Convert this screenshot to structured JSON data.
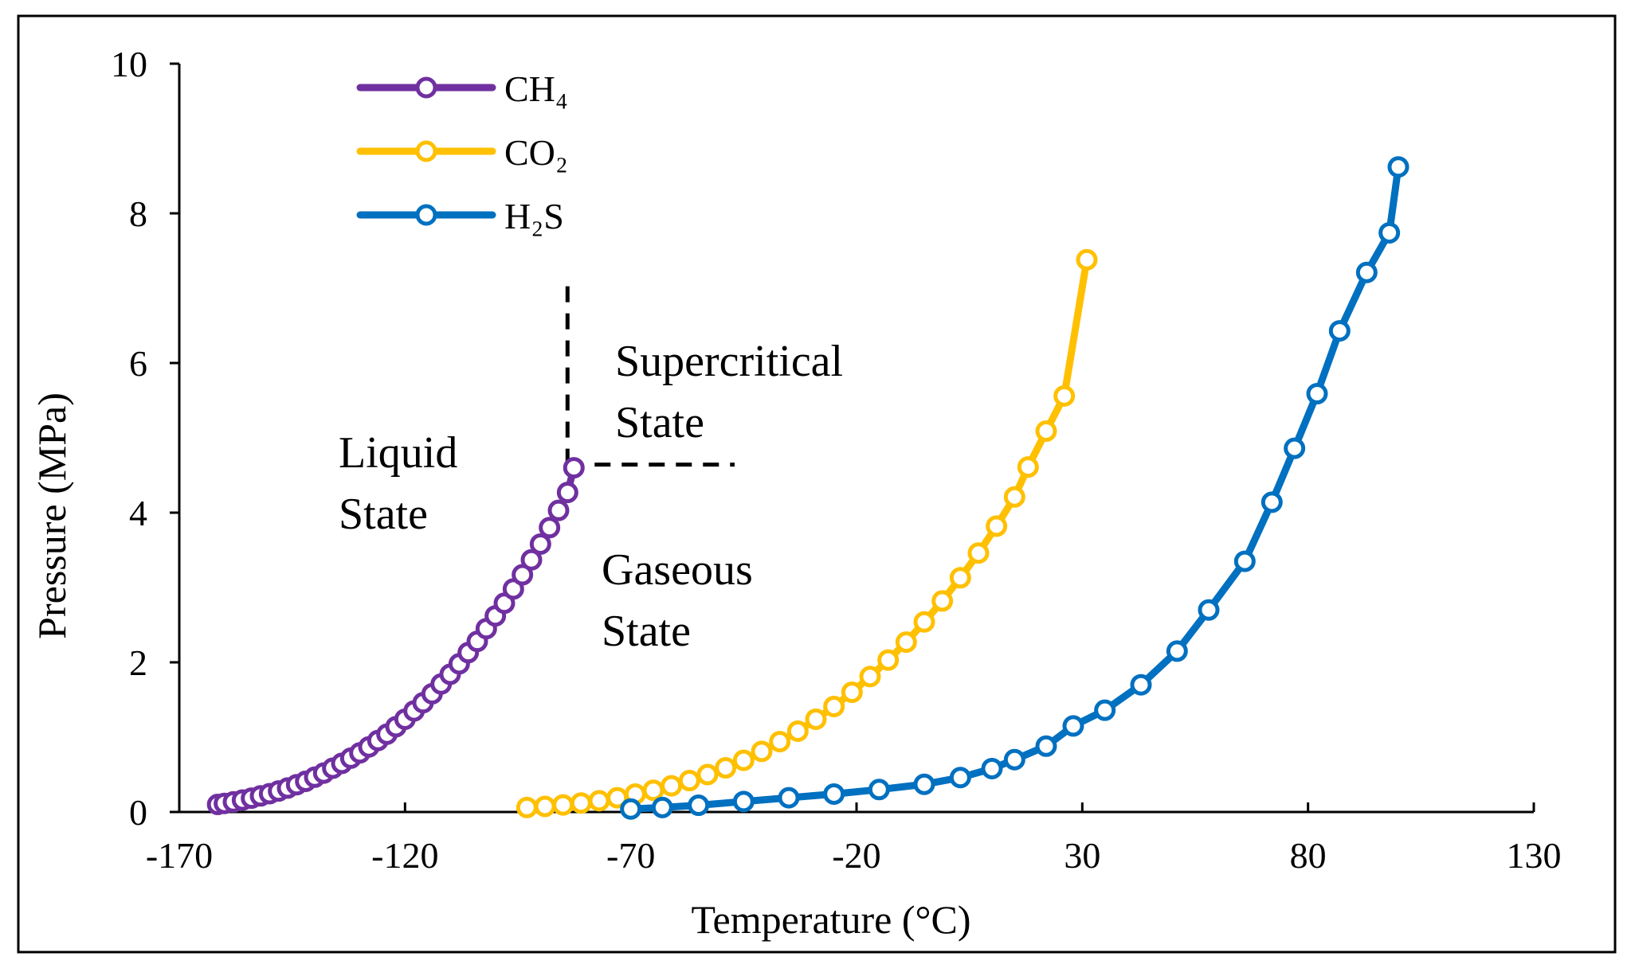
{
  "chart_data": {
    "type": "line",
    "xlabel": "Temperature (°C)",
    "ylabel": "Pressure (MPa)",
    "xlim": [
      -170,
      130
    ],
    "ylim": [
      0,
      10
    ],
    "x_ticks": [
      "-170",
      "-120",
      "-70",
      "-20",
      "30",
      "80",
      "130"
    ],
    "y_ticks": [
      "0",
      "2",
      "4",
      "6",
      "8",
      "10"
    ],
    "grid": false,
    "legend_placement": "top-left",
    "series": [
      {
        "name": "CH₄",
        "color": "#7030A0",
        "marker": "open-circle",
        "x": [
          -161.5,
          -160,
          -158,
          -156,
          -154,
          -152,
          -150,
          -148,
          -146,
          -144,
          -142,
          -140,
          -138,
          -136,
          -134,
          -132,
          -130,
          -128,
          -126,
          -124,
          -122,
          -120,
          -118,
          -116,
          -114,
          -112,
          -110,
          -108,
          -106,
          -104,
          -102,
          -100,
          -98,
          -96,
          -94,
          -92,
          -90,
          -88,
          -86,
          -84,
          -82.6
        ],
        "y": [
          0.101,
          0.115,
          0.135,
          0.16,
          0.185,
          0.215,
          0.245,
          0.28,
          0.32,
          0.365,
          0.41,
          0.465,
          0.52,
          0.585,
          0.65,
          0.72,
          0.79,
          0.87,
          0.955,
          1.04,
          1.14,
          1.24,
          1.35,
          1.46,
          1.58,
          1.71,
          1.84,
          1.98,
          2.13,
          2.28,
          2.45,
          2.62,
          2.79,
          2.98,
          3.17,
          3.37,
          3.58,
          3.8,
          4.03,
          4.27,
          4.6
        ]
      },
      {
        "name": "CO₂",
        "color": "#FFC000",
        "marker": "open-circle",
        "x": [
          -93,
          -89,
          -85,
          -81,
          -77,
          -73,
          -69,
          -65,
          -61,
          -57,
          -53,
          -49,
          -45,
          -41,
          -37,
          -33,
          -29,
          -25,
          -21,
          -17,
          -13,
          -9,
          -5,
          -1,
          3,
          7,
          11,
          15,
          18,
          22,
          26,
          31
        ],
        "y": [
          0.06,
          0.075,
          0.095,
          0.12,
          0.15,
          0.19,
          0.24,
          0.29,
          0.35,
          0.42,
          0.5,
          0.59,
          0.69,
          0.81,
          0.94,
          1.08,
          1.24,
          1.41,
          1.6,
          1.81,
          2.03,
          2.27,
          2.54,
          2.82,
          3.13,
          3.46,
          3.82,
          4.21,
          4.61,
          5.09,
          5.56,
          7.38
        ]
      },
      {
        "name": "H₂S",
        "color": "#0070C0",
        "marker": "open-circle",
        "x": [
          -70,
          -63,
          -55,
          -45,
          -35,
          -25,
          -15,
          -5,
          3,
          10,
          15,
          22,
          28,
          35,
          43,
          51,
          58,
          66,
          72,
          77,
          82,
          87,
          93,
          98,
          100
        ],
        "y": [
          0.04,
          0.06,
          0.09,
          0.14,
          0.19,
          0.24,
          0.3,
          0.37,
          0.46,
          0.58,
          0.7,
          0.88,
          1.15,
          1.36,
          1.7,
          2.15,
          2.7,
          3.35,
          4.14,
          4.86,
          5.59,
          6.43,
          7.21,
          7.74,
          8.62
        ]
      }
    ],
    "annotations": [
      {
        "line1": "Liquid",
        "line2": "State"
      },
      {
        "line1": "Supercritical",
        "line2": "State"
      },
      {
        "line1": "Gaseous",
        "line2": "State"
      }
    ],
    "critical_point": {
      "x": -82.6,
      "y": 4.6
    }
  }
}
